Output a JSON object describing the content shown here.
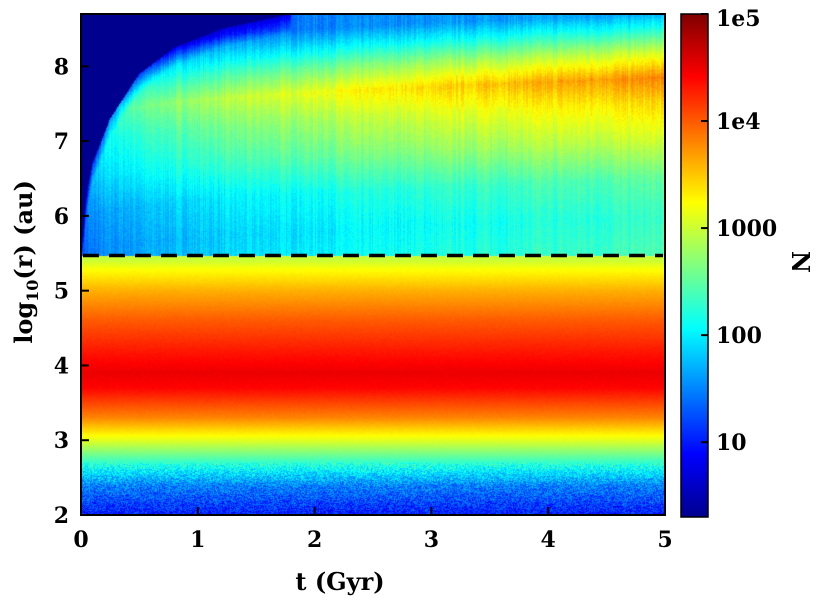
{
  "chart_data": {
    "type": "heatmap",
    "title": "",
    "xlabel": "t (Gyr)",
    "ylabel_base": "log",
    "ylabel_sub": "10",
    "ylabel_rest": "(r) (au)",
    "xlim": [
      0,
      5
    ],
    "ylim": [
      2,
      8.7
    ],
    "x_ticks": [
      0,
      1,
      2,
      3,
      4,
      5
    ],
    "x_tick_labels": [
      "0",
      "1",
      "2",
      "3",
      "4",
      "5"
    ],
    "y_ticks": [
      2,
      3,
      4,
      5,
      6,
      7,
      8
    ],
    "y_tick_labels": [
      "2",
      "3",
      "4",
      "5",
      "6",
      "7",
      "8"
    ],
    "dashed_line_y": 5.47,
    "colorbar": {
      "label": "N",
      "scale": "log",
      "colormap": "jet",
      "range": [
        2,
        100000
      ],
      "ticks": [
        10,
        100,
        1000,
        10000,
        100000
      ],
      "tick_labels": [
        "10",
        "100",
        "1000",
        "1e4",
        "1e5"
      ]
    },
    "log_n_profile_inner": [
      {
        "y": 2.0,
        "logN": 1.0
      },
      {
        "y": 2.4,
        "logN": 1.5
      },
      {
        "y": 2.7,
        "logN": 2.3
      },
      {
        "y": 3.0,
        "logN": 3.1
      },
      {
        "y": 3.3,
        "logN": 3.8
      },
      {
        "y": 3.7,
        "logN": 4.4
      },
      {
        "y": 3.9,
        "logN": 4.5
      },
      {
        "y": 4.2,
        "logN": 4.3
      },
      {
        "y": 4.6,
        "logN": 4.0
      },
      {
        "y": 5.0,
        "logN": 3.6
      },
      {
        "y": 5.3,
        "logN": 3.2
      },
      {
        "y": 5.4,
        "logN": 3.0
      }
    ],
    "log_n_profile_outer_at_5gyr": [
      {
        "y": 5.5,
        "logN": 2.4
      },
      {
        "y": 6.0,
        "logN": 2.3
      },
      {
        "y": 6.5,
        "logN": 2.5
      },
      {
        "y": 7.0,
        "logN": 3.0
      },
      {
        "y": 7.5,
        "logN": 3.4
      },
      {
        "y": 7.85,
        "logN": 3.8
      },
      {
        "y": 8.2,
        "logN": 3.0
      },
      {
        "y": 8.5,
        "logN": 2.2
      },
      {
        "y": 8.7,
        "logN": 1.7
      }
    ],
    "empty_region_edge": [
      {
        "t": 0.0,
        "y": 5.5
      },
      {
        "t": 0.05,
        "y": 6.3
      },
      {
        "t": 0.1,
        "y": 6.7
      },
      {
        "t": 0.25,
        "y": 7.3
      },
      {
        "t": 0.5,
        "y": 7.9
      },
      {
        "t": 0.8,
        "y": 8.25
      },
      {
        "t": 1.2,
        "y": 8.5
      },
      {
        "t": 1.8,
        "y": 8.7
      }
    ]
  }
}
